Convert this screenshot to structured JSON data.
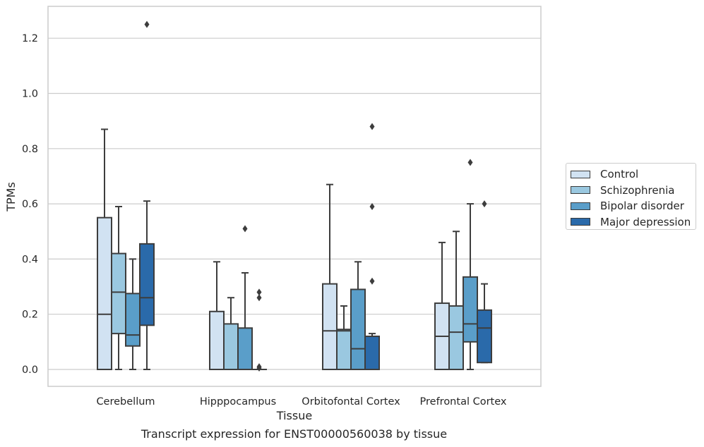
{
  "chart_data": {
    "type": "box",
    "title": "",
    "caption": "Transcript expression for ENST00000560038 by tissue",
    "xlabel": "Tissue",
    "ylabel": "TPMs",
    "ylim": [
      -0.06,
      1.32
    ],
    "yticks": [
      "0.0",
      "0.2",
      "0.4",
      "0.6",
      "0.8",
      "1.0",
      "1.2"
    ],
    "ytick_values": [
      0.0,
      0.2,
      0.4,
      0.6,
      0.8,
      1.0,
      1.2
    ],
    "grid": "horizontal",
    "legend_position": "right",
    "categories": [
      "Cerebellum",
      "Hipppocampus",
      "Orbitofontal Cortex",
      "Prefrontal Cortex"
    ],
    "series": [
      {
        "name": "Control",
        "color": "#d1e2f2",
        "boxes": [
          {
            "low": 0.0,
            "q1": 0.0,
            "median": 0.2,
            "q3": 0.55,
            "high": 0.87,
            "outliers": []
          },
          {
            "low": 0.0,
            "q1": 0.0,
            "median": 0.0,
            "q3": 0.21,
            "high": 0.39,
            "outliers": []
          },
          {
            "low": 0.0,
            "q1": 0.0,
            "median": 0.14,
            "q3": 0.31,
            "high": 0.67,
            "outliers": []
          },
          {
            "low": 0.0,
            "q1": 0.0,
            "median": 0.12,
            "q3": 0.24,
            "high": 0.46,
            "outliers": []
          }
        ]
      },
      {
        "name": "Schizophrenia",
        "color": "#9ac8e0",
        "boxes": [
          {
            "low": 0.0,
            "q1": 0.13,
            "median": 0.28,
            "q3": 0.42,
            "high": 0.59,
            "outliers": []
          },
          {
            "low": 0.0,
            "q1": 0.0,
            "median": 0.0,
            "q3": 0.165,
            "high": 0.26,
            "outliers": []
          },
          {
            "low": 0.0,
            "q1": 0.0,
            "median": 0.14,
            "q3": 0.145,
            "high": 0.23,
            "outliers": []
          },
          {
            "low": 0.0,
            "q1": 0.0,
            "median": 0.135,
            "q3": 0.23,
            "high": 0.5,
            "outliers": []
          }
        ]
      },
      {
        "name": "Bipolar disorder",
        "color": "#5a9ec9",
        "boxes": [
          {
            "low": 0.0,
            "q1": 0.085,
            "median": 0.125,
            "q3": 0.275,
            "high": 0.4,
            "outliers": []
          },
          {
            "low": 0.0,
            "q1": 0.0,
            "median": 0.0,
            "q3": 0.15,
            "high": 0.35,
            "outliers": [
              0.51
            ]
          },
          {
            "low": 0.0,
            "q1": 0.0,
            "median": 0.075,
            "q3": 0.29,
            "high": 0.39,
            "outliers": []
          },
          {
            "low": 0.0,
            "q1": 0.1,
            "median": 0.165,
            "q3": 0.335,
            "high": 0.6,
            "outliers": [
              0.75
            ]
          }
        ]
      },
      {
        "name": "Major depression",
        "color": "#2a6aaa",
        "boxes": [
          {
            "low": 0.0,
            "q1": 0.16,
            "median": 0.26,
            "q3": 0.455,
            "high": 0.61,
            "outliers": [
              1.25
            ]
          },
          {
            "low": 0.0,
            "q1": 0.0,
            "median": 0.0,
            "q3": 0.0,
            "high": 0.0,
            "outliers": [
              0.005,
              0.01,
              0.26,
              0.28
            ]
          },
          {
            "low": 0.0,
            "q1": 0.0,
            "median": 0.0,
            "q3": 0.12,
            "high": 0.13,
            "outliers": [
              0.32,
              0.59,
              0.88
            ]
          },
          {
            "low": 0.025,
            "q1": 0.025,
            "median": 0.15,
            "q3": 0.215,
            "high": 0.31,
            "outliers": [
              0.6
            ]
          }
        ]
      }
    ]
  }
}
